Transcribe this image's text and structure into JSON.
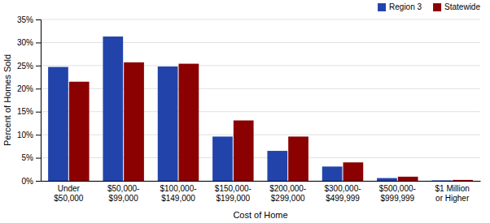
{
  "chart_data": {
    "type": "bar",
    "categories": [
      "Under\n$50,000",
      "$50,000-\n$99,000",
      "$100,000-\n$149,000",
      "$150,000-\n$199,000",
      "$200,000-\n$299,000",
      "$300,000-\n$499,999",
      "$500,000-\n$999,999",
      "$1 Million\nor Higher"
    ],
    "series": [
      {
        "name": "Region 3",
        "color": "#2244AA",
        "values": [
          24.7,
          31.3,
          24.8,
          9.6,
          6.5,
          3.1,
          0.6,
          0.1
        ]
      },
      {
        "name": "Statewide",
        "color": "#8B0000",
        "values": [
          21.5,
          25.7,
          25.4,
          13.1,
          9.6,
          4.0,
          0.9,
          0.2
        ]
      }
    ],
    "xlabel": "Cost of Home",
    "ylabel": "Percent of Homes Sold",
    "ylim": [
      0,
      35
    ],
    "yticks": [
      {
        "value": 0,
        "label": "0%"
      },
      {
        "value": 5,
        "label": "5%"
      },
      {
        "value": 10,
        "label": "10%"
      },
      {
        "value": 15,
        "label": "15%"
      },
      {
        "value": 20,
        "label": "20%"
      },
      {
        "value": 25,
        "label": "25%"
      },
      {
        "value": 30,
        "label": "30%"
      },
      {
        "value": 35,
        "label": "35%"
      }
    ],
    "grid": true,
    "legend": "upper right"
  }
}
